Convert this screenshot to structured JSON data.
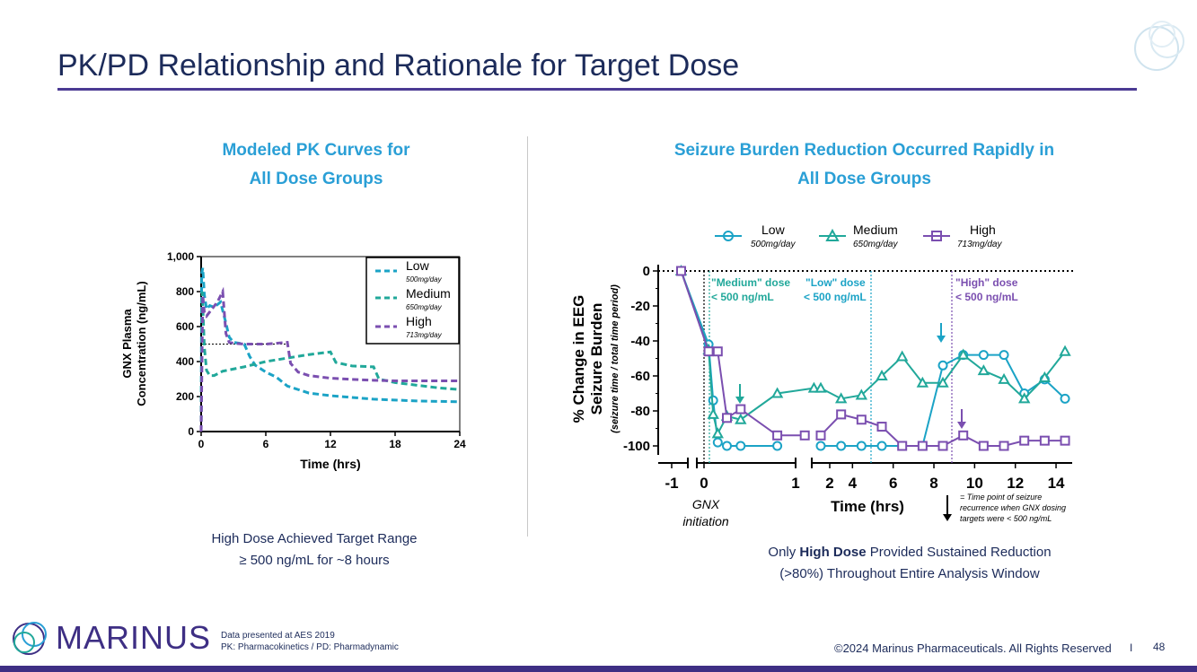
{
  "page": {
    "title": "PK/PD Relationship and Rationale for Target Dose",
    "left_heading_1": "Modeled PK Curves for",
    "left_heading_2": "All Dose Groups",
    "left_caption_1": "High Dose Achieved Target Range",
    "left_caption_2": "≥ 500 ng/mL for ~8 hours",
    "right_heading_1": "Seizure Burden Reduction Occurred Rapidly in",
    "right_heading_2": "All Dose Groups",
    "right_caption_pre": "Only ",
    "right_caption_bold": "High Dose",
    "right_caption_post": " Provided Sustained Reduction",
    "right_caption_2": "(>80%) Throughout Entire Analysis Window",
    "footer_note_1": "Data presented at AES 2019",
    "footer_note_2": "PK: Pharmacokinetics / PD: Pharmadynamic",
    "copyright": "©2024 Marinus Pharmaceuticals. All Rights Reserved",
    "separator": "I",
    "page_number": "48",
    "brand": "MARINUS"
  },
  "colors": {
    "low": "#1ba3c6",
    "medium": "#21a89a",
    "high": "#7b4fb0",
    "title": "#1c2b5a",
    "accent": "#2a9fd6",
    "brand": "#3e2f84"
  },
  "chart_data": [
    {
      "type": "line",
      "xlabel": "Time (hrs)",
      "ylabel_1": "GNX Plasma",
      "ylabel_2": "Concentration (ng/mL)",
      "xlim": [
        0,
        24
      ],
      "ylim": [
        0,
        1000
      ],
      "xticks": [
        "0",
        "6",
        "12",
        "18",
        "24"
      ],
      "yticks": [
        "0",
        "200",
        "400",
        "600",
        "800",
        "1,000"
      ],
      "reference_line_y": 500,
      "legend": [
        {
          "name": "Low",
          "sub": "500mg/day"
        },
        {
          "name": "Medium",
          "sub": "650mg/day"
        },
        {
          "name": "High",
          "sub": "713mg/day"
        }
      ],
      "series": [
        {
          "name": "Low",
          "x": [
            0,
            0.05,
            0.15,
            0.3,
            0.5,
            0.8,
            1.2,
            1.8,
            2.3,
            2.6,
            3.0,
            3.5,
            4.0,
            4.5,
            5.0,
            6.0,
            7.0,
            8.0,
            10,
            12,
            16,
            20,
            24
          ],
          "y": [
            0,
            900,
            935,
            780,
            700,
            720,
            710,
            740,
            620,
            540,
            510,
            505,
            500,
            430,
            380,
            340,
            310,
            260,
            220,
            205,
            185,
            175,
            170
          ]
        },
        {
          "name": "Medium",
          "x": [
            0,
            0.1,
            0.3,
            0.5,
            0.8,
            1.2,
            2,
            4,
            6,
            8,
            10,
            12,
            12.5,
            14,
            16,
            16.5,
            18,
            20,
            22,
            24
          ],
          "y": [
            0,
            800,
            480,
            350,
            320,
            320,
            345,
            370,
            400,
            420,
            440,
            455,
            395,
            375,
            370,
            300,
            280,
            265,
            250,
            240
          ]
        },
        {
          "name": "High",
          "x": [
            0,
            0.15,
            0.3,
            0.5,
            1.0,
            1.5,
            2.0,
            2.3,
            2.6,
            3.0,
            4.0,
            6.0,
            8.0,
            8.3,
            9,
            10,
            12,
            14,
            16,
            18,
            20,
            22,
            24
          ],
          "y": [
            0,
            780,
            680,
            660,
            700,
            740,
            800,
            560,
            510,
            505,
            500,
            500,
            510,
            390,
            340,
            320,
            305,
            298,
            293,
            290,
            290,
            290,
            290
          ]
        }
      ]
    },
    {
      "type": "line",
      "xlabel": "Time (hrs)",
      "ylabel_1": "% Change in EEG",
      "ylabel_2": "Seizure Burden",
      "ylabel_3": "(seizure time / total time period)",
      "ylim": [
        -100,
        0
      ],
      "yticks": [
        "0",
        "-20",
        "-40",
        "-60",
        "-80",
        "-100"
      ],
      "xticks_left": [
        "-1",
        "0",
        "1"
      ],
      "xticks_right": [
        "2",
        "4",
        "6",
        "8",
        "10",
        "12",
        "14"
      ],
      "below_axis_1": "GNX",
      "below_axis_2": "initiation",
      "legend": [
        {
          "name": "Low",
          "sub": "500mg/day"
        },
        {
          "name": "Medium",
          "sub": "650mg/day"
        },
        {
          "name": "High",
          "sub": "713mg/day"
        }
      ],
      "annotations": {
        "medium_1": "\"Medium\" dose",
        "medium_2": "< 500 ng/mL",
        "low_1": "\"Low\" dose",
        "low_2": "< 500 ng/mL",
        "high_1": "\"High\" dose",
        "high_2": "< 500 ng/mL",
        "arrow_note_1": "= Time point of seizure",
        "arrow_note_2": "recurrence when GNX dosing",
        "arrow_note_3": "targets were < 500 ng/mL"
      },
      "series": [
        {
          "name": "Low",
          "early": {
            "x": [
              -0.25,
              0.05,
              0.1,
              0.15,
              0.25,
              0.4,
              0.8
            ],
            "y": [
              0,
              -42,
              -74,
              -98,
              -100,
              -100,
              -100
            ]
          },
          "late": {
            "x": [
              1.5,
              2.5,
              3.5,
              4.5,
              5.5,
              6.5,
              7.5,
              8.5,
              9.5,
              10.5,
              11.5,
              12.5,
              13.5
            ],
            "y": [
              -100,
              -100,
              -100,
              -100,
              -100,
              -100,
              -54,
              -48,
              -48,
              -48,
              -70,
              -62,
              -73
            ]
          }
        },
        {
          "name": "Medium",
          "early": {
            "x": [
              -0.25,
              0.05,
              0.1,
              0.15,
              0.25,
              0.4,
              0.8,
              1.2
            ],
            "y": [
              0,
              -45,
              -82,
              -93,
              -83,
              -85,
              -70,
              -67
            ]
          },
          "late": {
            "x": [
              1.5,
              2.5,
              3.5,
              4.5,
              5.5,
              6.5,
              7.5,
              8.5,
              9.5,
              10.5,
              11.5,
              12.5,
              13.5
            ],
            "y": [
              -67,
              -73,
              -71,
              -60,
              -49,
              -64,
              -64,
              -48,
              -57,
              -62,
              -73,
              -61,
              -46
            ]
          }
        },
        {
          "name": "High",
          "early": {
            "x": [
              -0.25,
              0.05,
              0.15,
              0.25,
              0.4,
              0.8,
              1.1
            ],
            "y": [
              0,
              -46,
              -46,
              -84,
              -79,
              -94,
              -94
            ]
          },
          "late": {
            "x": [
              1.5,
              2.5,
              3.5,
              4.5,
              5.5,
              6.5,
              7.5,
              8.5,
              9.5,
              10.5,
              11.5,
              12.5,
              13.5
            ],
            "y": [
              -94,
              -82,
              -85,
              -89,
              -100,
              -100,
              -100,
              -94,
              -100,
              -100,
              -97,
              -97,
              -97
            ]
          }
        }
      ]
    }
  ]
}
